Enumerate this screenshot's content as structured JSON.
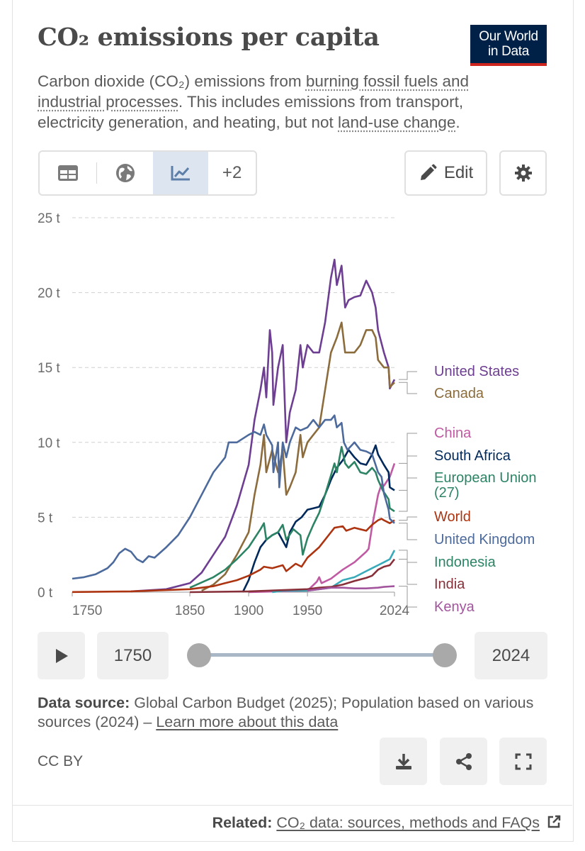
{
  "header": {
    "title": "CO₂ emissions per capita",
    "logo_line1": "Our World",
    "logo_line2": "in Data",
    "subtitle_part1": "Carbon dioxide (CO₂) emissions from ",
    "subtitle_link1": "burning fossil fuels and industrial processes",
    "subtitle_part2": ". This includes emissions from transport, electricity generation, and heating, but not ",
    "subtitle_link2": "land-use change",
    "subtitle_part3": "."
  },
  "toolbar": {
    "tabs": [
      "table-icon",
      "globe-icon",
      "line-chart-icon"
    ],
    "more_label": "+2",
    "edit_label": "Edit",
    "settings_icon": "gear-icon"
  },
  "timeline": {
    "start_label": "1750",
    "end_label": "2024",
    "start_value": 1750,
    "end_value": 2024
  },
  "footer": {
    "source_bold": "Data source:",
    "source_text": " Global Carbon Budget (2025); Population based on various sources (2024) – ",
    "source_link": "Learn more about this data",
    "license": "CC BY",
    "related_bold": "Related:",
    "related_link": "CO₂ data: sources, methods and FAQs"
  },
  "chart_data": {
    "type": "line",
    "title": "CO₂ emissions per capita",
    "xlabel": "",
    "ylabel": "",
    "xlim": [
      1750,
      2024
    ],
    "ylim": [
      0,
      25
    ],
    "x_ticks": [
      "1750",
      "1850",
      "1900",
      "1950",
      "2024"
    ],
    "y_ticks": [
      "0 t",
      "5 t",
      "10 t",
      "15 t",
      "20 t",
      "25 t"
    ],
    "grid": "horizontal-dashed",
    "legend": "right",
    "series": [
      {
        "name": "United States",
        "color": "#6d3e91",
        "points": [
          [
            1800,
            0.05
          ],
          [
            1830,
            0.2
          ],
          [
            1850,
            0.6
          ],
          [
            1860,
            1.3
          ],
          [
            1870,
            2.5
          ],
          [
            1880,
            3.7
          ],
          [
            1890,
            5.8
          ],
          [
            1900,
            8.5
          ],
          [
            1905,
            11.5
          ],
          [
            1910,
            13.5
          ],
          [
            1913,
            15
          ],
          [
            1915,
            13
          ],
          [
            1918,
            17.5
          ],
          [
            1920,
            16
          ],
          [
            1921,
            12.5
          ],
          [
            1925,
            15
          ],
          [
            1929,
            16.5
          ],
          [
            1931,
            12
          ],
          [
            1932,
            10
          ],
          [
            1935,
            12
          ],
          [
            1940,
            13.5
          ],
          [
            1944,
            16.5
          ],
          [
            1946,
            15
          ],
          [
            1950,
            16.5
          ],
          [
            1955,
            16
          ],
          [
            1960,
            16
          ],
          [
            1965,
            18
          ],
          [
            1970,
            21
          ],
          [
            1973,
            22.2
          ],
          [
            1975,
            20.5
          ],
          [
            1979,
            21.8
          ],
          [
            1982,
            19
          ],
          [
            1985,
            19.5
          ],
          [
            1990,
            19.7
          ],
          [
            1995,
            19.8
          ],
          [
            2000,
            20.8
          ],
          [
            2005,
            20
          ],
          [
            2008,
            19
          ],
          [
            2010,
            17.5
          ],
          [
            2015,
            16
          ],
          [
            2019,
            15
          ],
          [
            2020,
            13.6
          ],
          [
            2024,
            14.2
          ]
        ]
      },
      {
        "name": "Canada",
        "color": "#8c6c3c",
        "points": [
          [
            1860,
            0.1
          ],
          [
            1870,
            0.5
          ],
          [
            1880,
            1.2
          ],
          [
            1890,
            2.5
          ],
          [
            1900,
            4
          ],
          [
            1905,
            6.5
          ],
          [
            1910,
            8.5
          ],
          [
            1913,
            10.5
          ],
          [
            1915,
            8
          ],
          [
            1920,
            9.5
          ],
          [
            1925,
            8
          ],
          [
            1929,
            9.5
          ],
          [
            1932,
            6.5
          ],
          [
            1935,
            7
          ],
          [
            1940,
            8
          ],
          [
            1944,
            10.5
          ],
          [
            1946,
            9
          ],
          [
            1950,
            10
          ],
          [
            1955,
            10.5
          ],
          [
            1960,
            11
          ],
          [
            1965,
            13.5
          ],
          [
            1970,
            16
          ],
          [
            1975,
            17
          ],
          [
            1979,
            18
          ],
          [
            1982,
            16
          ],
          [
            1985,
            16
          ],
          [
            1990,
            16
          ],
          [
            1995,
            16.5
          ],
          [
            2000,
            17.5
          ],
          [
            2005,
            17.5
          ],
          [
            2008,
            17
          ],
          [
            2010,
            15.5
          ],
          [
            2015,
            15
          ],
          [
            2019,
            15
          ],
          [
            2020,
            13.7
          ],
          [
            2024,
            14
          ]
        ]
      },
      {
        "name": "China",
        "color": "#c05aa2",
        "points": [
          [
            1900,
            0
          ],
          [
            1950,
            0.1
          ],
          [
            1958,
            0.7
          ],
          [
            1960,
            1
          ],
          [
            1962,
            0.6
          ],
          [
            1970,
            0.9
          ],
          [
            1980,
            1.5
          ],
          [
            1990,
            2
          ],
          [
            2000,
            2.7
          ],
          [
            2002,
            2.9
          ],
          [
            2005,
            4.4
          ],
          [
            2010,
            6.5
          ],
          [
            2013,
            7.2
          ],
          [
            2015,
            7.1
          ],
          [
            2020,
            7.7
          ],
          [
            2024,
            8.6
          ]
        ]
      },
      {
        "name": "South Africa",
        "color": "#00295b",
        "points": [
          [
            1895,
            0
          ],
          [
            1900,
            0.8
          ],
          [
            1905,
            2
          ],
          [
            1910,
            3
          ],
          [
            1915,
            3.5
          ],
          [
            1920,
            3.8
          ],
          [
            1925,
            4
          ],
          [
            1932,
            3
          ],
          [
            1935,
            4
          ],
          [
            1940,
            4.7
          ],
          [
            1945,
            5
          ],
          [
            1950,
            5.5
          ],
          [
            1955,
            5.6
          ],
          [
            1960,
            5.7
          ],
          [
            1965,
            6.5
          ],
          [
            1970,
            7.5
          ],
          [
            1975,
            8.3
          ],
          [
            1980,
            8.8
          ],
          [
            1985,
            9.5
          ],
          [
            1990,
            9
          ],
          [
            1995,
            8.6
          ],
          [
            2000,
            8.5
          ],
          [
            2005,
            9.2
          ],
          [
            2008,
            9.8
          ],
          [
            2010,
            9.2
          ],
          [
            2015,
            8.5
          ],
          [
            2019,
            8
          ],
          [
            2020,
            7
          ],
          [
            2024,
            6.8
          ]
        ]
      },
      {
        "name": "European Union (27)",
        "color": "#38aaba",
        "points": []
      },
      {
        "name": "World",
        "color": "#ad3411",
        "points": [
          [
            1750,
            0.01
          ],
          [
            1800,
            0.05
          ],
          [
            1850,
            0.2
          ],
          [
            1870,
            0.4
          ],
          [
            1880,
            0.6
          ],
          [
            1890,
            0.8
          ],
          [
            1900,
            1.1
          ],
          [
            1910,
            1.5
          ],
          [
            1913,
            1.7
          ],
          [
            1920,
            1.6
          ],
          [
            1929,
            1.8
          ],
          [
            1932,
            1.4
          ],
          [
            1940,
            1.9
          ],
          [
            1945,
            1.7
          ],
          [
            1950,
            2.3
          ],
          [
            1960,
            3
          ],
          [
            1970,
            4
          ],
          [
            1973,
            4.3
          ],
          [
            1980,
            4.4
          ],
          [
            1983,
            4.1
          ],
          [
            1990,
            4.3
          ],
          [
            2000,
            4.1
          ],
          [
            2005,
            4.5
          ],
          [
            2010,
            4.8
          ],
          [
            2013,
            4.9
          ],
          [
            2015,
            4.8
          ],
          [
            2020,
            4.6
          ],
          [
            2024,
            4.8
          ]
        ]
      },
      {
        "name": "United Kingdom",
        "color": "#4c6a9c",
        "points": [
          [
            1750,
            0.9
          ],
          [
            1760,
            1
          ],
          [
            1770,
            1.2
          ],
          [
            1780,
            1.6
          ],
          [
            1785,
            2
          ],
          [
            1790,
            2.6
          ],
          [
            1795,
            2.9
          ],
          [
            1800,
            2.7
          ],
          [
            1805,
            2.2
          ],
          [
            1810,
            2.0
          ],
          [
            1815,
            2.4
          ],
          [
            1820,
            2.3
          ],
          [
            1830,
            3
          ],
          [
            1840,
            3.8
          ],
          [
            1850,
            5
          ],
          [
            1860,
            6.5
          ],
          [
            1870,
            8
          ],
          [
            1880,
            9
          ],
          [
            1883,
            10
          ],
          [
            1890,
            10
          ],
          [
            1900,
            10.5
          ],
          [
            1905,
            10.7
          ],
          [
            1910,
            10.5
          ],
          [
            1913,
            11.2
          ],
          [
            1915,
            10.5
          ],
          [
            1920,
            9.8
          ],
          [
            1921,
            8
          ],
          [
            1925,
            10
          ],
          [
            1926,
            7
          ],
          [
            1929,
            10
          ],
          [
            1932,
            9
          ],
          [
            1935,
            10
          ],
          [
            1940,
            11
          ],
          [
            1944,
            10.8
          ],
          [
            1950,
            11
          ],
          [
            1955,
            11.5
          ],
          [
            1960,
            11
          ],
          [
            1965,
            11.5
          ],
          [
            1970,
            11.5
          ],
          [
            1973,
            11.8
          ],
          [
            1975,
            11
          ],
          [
            1979,
            11.3
          ],
          [
            1981,
            10
          ],
          [
            1984,
            9.5
          ],
          [
            1990,
            10
          ],
          [
            1995,
            9.5
          ],
          [
            2000,
            9.4
          ],
          [
            2005,
            9.2
          ],
          [
            2010,
            8
          ],
          [
            2013,
            7.7
          ],
          [
            2015,
            6.6
          ],
          [
            2019,
            5.5
          ],
          [
            2020,
            4.9
          ],
          [
            2024,
            4.6
          ]
        ]
      },
      {
        "name": "Indonesia",
        "color": "#2c8465",
        "points": [
          [
            1920,
            0
          ],
          [
            1930,
            0.1
          ],
          [
            1940,
            0.1
          ],
          [
            1950,
            0.1
          ],
          [
            1960,
            0.2
          ],
          [
            1970,
            0.3
          ],
          [
            1980,
            0.8
          ],
          [
            1990,
            1
          ],
          [
            2000,
            1.4
          ],
          [
            2005,
            1.6
          ],
          [
            2010,
            1.8
          ],
          [
            2015,
            2
          ],
          [
            2020,
            2.2
          ],
          [
            2024,
            2.8
          ]
        ]
      },
      {
        "name": "India",
        "color": "#883039",
        "points": [
          [
            1850,
            0
          ],
          [
            1900,
            0.05
          ],
          [
            1950,
            0.2
          ],
          [
            1960,
            0.3
          ],
          [
            1970,
            0.35
          ],
          [
            1980,
            0.5
          ],
          [
            1990,
            0.75
          ],
          [
            2000,
            0.95
          ],
          [
            2005,
            1.1
          ],
          [
            2010,
            1.5
          ],
          [
            2015,
            1.7
          ],
          [
            2020,
            1.8
          ],
          [
            2024,
            2.2
          ]
        ]
      },
      {
        "name": "Kenya",
        "color": "#a2559c",
        "points": [
          [
            1950,
            0.1
          ],
          [
            1960,
            0.2
          ],
          [
            1970,
            0.3
          ],
          [
            1980,
            0.3
          ],
          [
            1990,
            0.25
          ],
          [
            2000,
            0.25
          ],
          [
            2010,
            0.3
          ],
          [
            2015,
            0.35
          ],
          [
            2020,
            0.38
          ],
          [
            2024,
            0.4
          ]
        ]
      }
    ]
  }
}
